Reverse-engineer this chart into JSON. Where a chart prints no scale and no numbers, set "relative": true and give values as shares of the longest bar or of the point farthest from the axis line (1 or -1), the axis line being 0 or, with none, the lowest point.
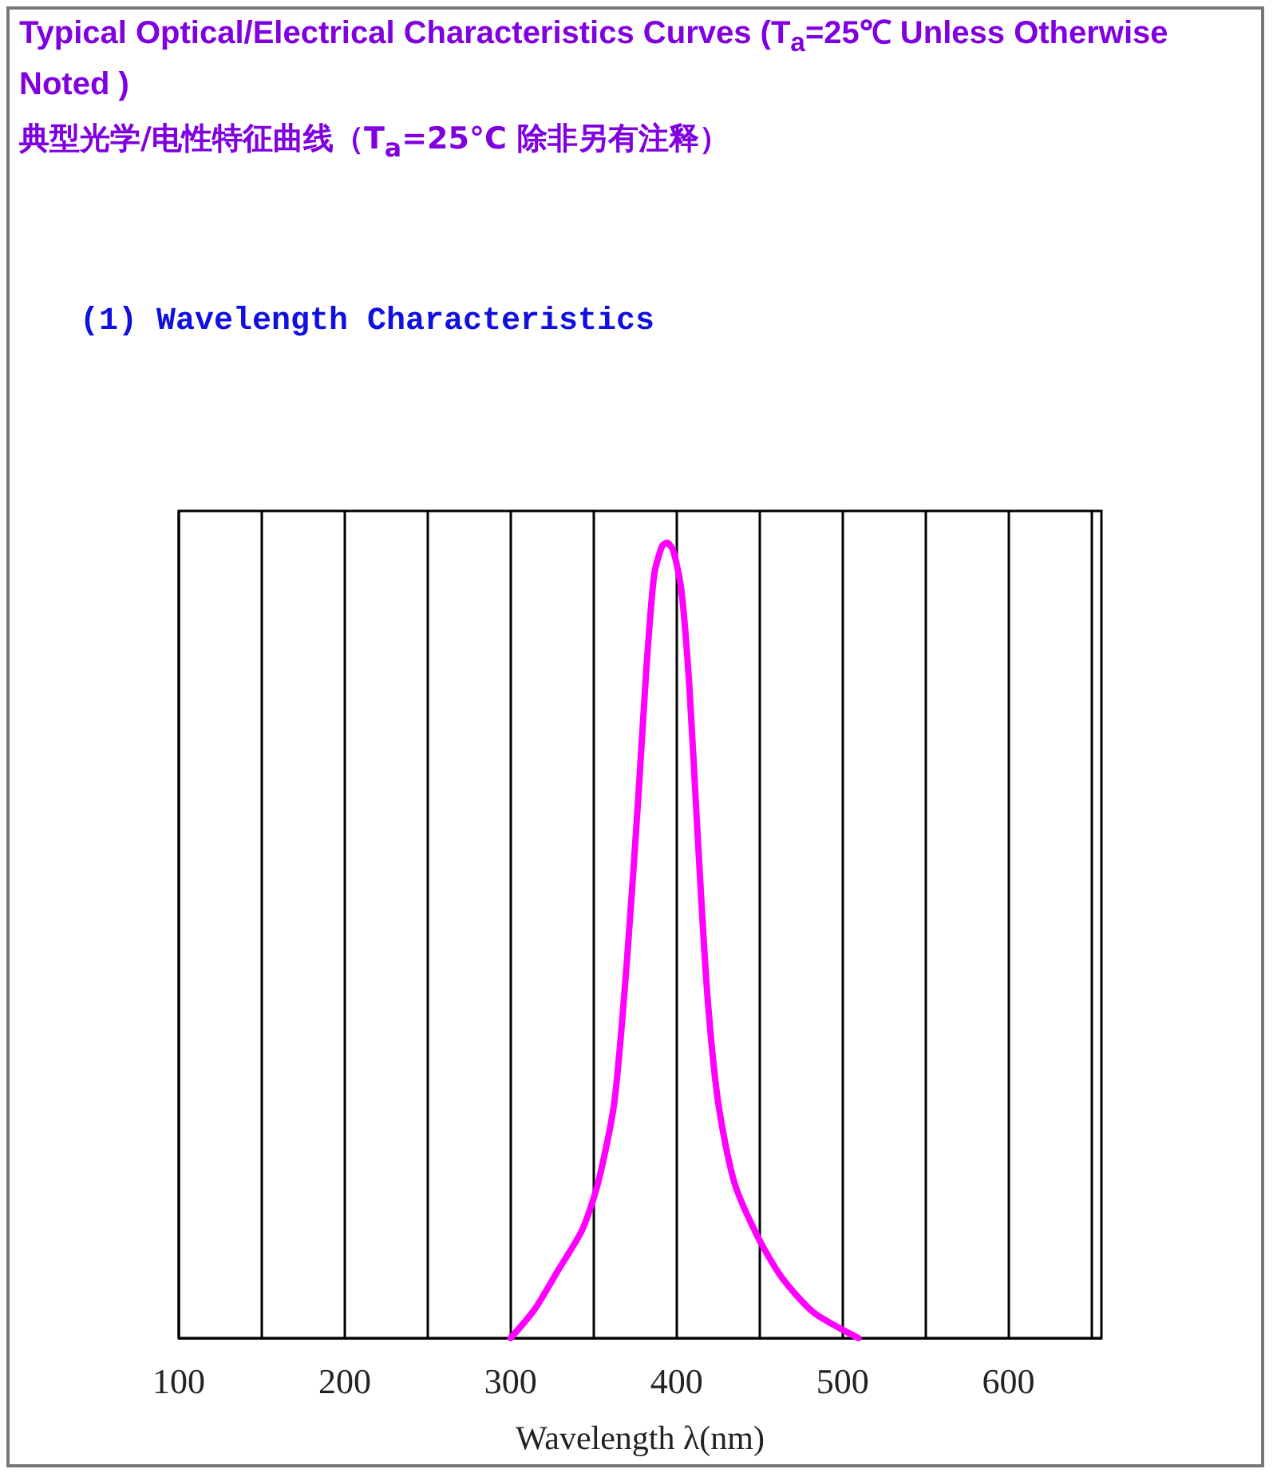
{
  "chart_data": {
    "type": "line",
    "title": "Typical Optical/Electrical Characteristics Curves (T$_{a}$=25℃ Unless Otherwise Noted )",
    "subtitle": "典型光学/电性特征曲线（T$_{a}$=25°C 除非另有注释）",
    "annotations": [
      "(1) Wavelength Characteristics"
    ],
    "xlabel": "Wavelength λ(nm)",
    "relative": true,
    "grid": "x",
    "xlim": [
      100,
      656
    ],
    "xticks": [
      100,
      {
        "value": 150,
        "label": null
      },
      200,
      {
        "value": 250,
        "label": null
      },
      300,
      {
        "value": 350,
        "label": null
      },
      400,
      {
        "value": 450,
        "label": null
      },
      500,
      {
        "value": 550,
        "label": null
      },
      600,
      {
        "value": 650,
        "label": null
      }
    ],
    "series": [
      {
        "color": "#ff00ff",
        "x": [
          300,
          314.4,
          328.8,
          343.3,
          352.9,
          362.5,
          370.2,
          376.9,
          381.7,
          386.5,
          391.3,
          394.2,
          398,
          402.9,
          407.7,
          412.5,
          418.3,
          425,
          434.6,
          449,
          463.5,
          482.7,
          509.6
        ],
        "values": [
          0,
          0.036,
          0.086,
          0.137,
          0.197,
          0.297,
          0.478,
          0.679,
          0.839,
          0.96,
          0.996,
          1,
          0.99,
          0.94,
          0.819,
          0.639,
          0.438,
          0.297,
          0.197,
          0.127,
          0.076,
          0.032,
          0
        ]
      }
    ]
  }
}
